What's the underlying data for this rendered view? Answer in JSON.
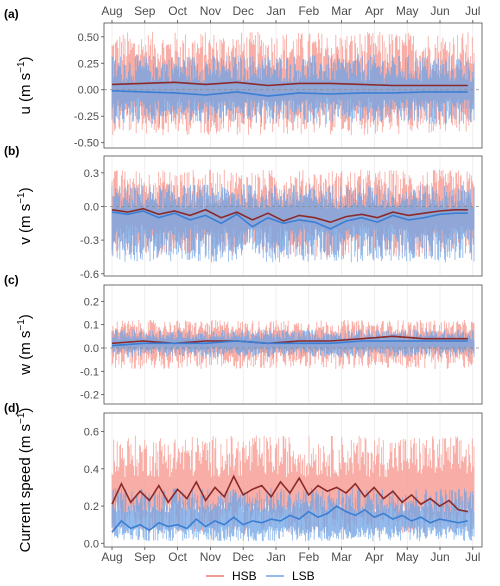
{
  "colors": {
    "hsb_raw": "#f7a096",
    "hsb_smooth": "#8b2a2a",
    "lsb_raw": "#6ea3e6",
    "lsb_smooth": "#3a7fd4",
    "panel_border": "#4d4d4d",
    "grid": "#e6e6e6"
  },
  "months": [
    "Aug",
    "Sep",
    "Oct",
    "Nov",
    "Dec",
    "Jan",
    "Feb",
    "Mar",
    "Apr",
    "May",
    "Jun",
    "Jul"
  ],
  "legend": [
    {
      "name": "HSB",
      "color": "#e87a6e"
    },
    {
      "name": "LSB",
      "color": "#6ea3e6"
    }
  ],
  "chart_data": [
    {
      "type": "line",
      "panel": "(a)",
      "ylabel_main": "u (m s",
      "ylabel_sup": "−1",
      "ylabel_close": ")",
      "yticks": [
        "0.50",
        "0.25",
        "0.00",
        "-0.25",
        "-0.50"
      ],
      "tick_values": [
        0.5,
        0.25,
        0.0,
        -0.25,
        -0.5
      ],
      "ylim": [
        -0.55,
        0.63
      ],
      "xlim": [
        0,
        11.6
      ],
      "x_axis": "months Aug–Jul",
      "zero_line": true,
      "series": [
        {
          "name": "HSB",
          "kind": "raw",
          "envelope_lo": -0.43,
          "envelope_hi": 0.55,
          "mean": 0.05
        },
        {
          "name": "LSB",
          "kind": "raw",
          "envelope_lo": -0.33,
          "envelope_hi": 0.33,
          "mean": -0.02
        },
        {
          "name": "HSB",
          "kind": "smoothed",
          "x": [
            0,
            1,
            2,
            3,
            4,
            5,
            6,
            7,
            8,
            9,
            10,
            11.4
          ],
          "values": [
            0.05,
            0.06,
            0.07,
            0.05,
            0.07,
            0.04,
            0.06,
            0.06,
            0.05,
            0.04,
            0.04,
            0.04
          ]
        },
        {
          "name": "LSB",
          "kind": "smoothed",
          "x": [
            0,
            1,
            2,
            3,
            4,
            5,
            6,
            7,
            8,
            9,
            10,
            11.4
          ],
          "values": [
            -0.01,
            -0.02,
            -0.03,
            -0.05,
            -0.02,
            -0.06,
            -0.03,
            -0.04,
            -0.03,
            -0.03,
            -0.02,
            -0.02
          ]
        }
      ]
    },
    {
      "type": "line",
      "panel": "(b)",
      "ylabel_main": "v (m s",
      "ylabel_sup": "−1",
      "ylabel_close": ")",
      "yticks": [
        "0.3",
        "0.0",
        "-0.3",
        "-0.6"
      ],
      "tick_values": [
        0.3,
        0.0,
        -0.3,
        -0.6
      ],
      "ylim": [
        -0.62,
        0.45
      ],
      "xlim": [
        0,
        11.6
      ],
      "zero_line": true,
      "series": [
        {
          "name": "HSB",
          "kind": "raw",
          "envelope_lo": -0.45,
          "envelope_hi": 0.33,
          "mean": -0.06
        },
        {
          "name": "LSB",
          "kind": "raw",
          "envelope_lo": -0.5,
          "envelope_hi": 0.2,
          "mean": -0.1
        },
        {
          "name": "HSB",
          "kind": "smoothed",
          "x": [
            0,
            0.5,
            1,
            1.5,
            2,
            2.5,
            3,
            3.5,
            4,
            4.5,
            5,
            5.5,
            6,
            6.5,
            7,
            7.5,
            8,
            8.5,
            9,
            9.5,
            10,
            10.5,
            11,
            11.4
          ],
          "values": [
            -0.03,
            -0.05,
            -0.02,
            -0.07,
            -0.04,
            -0.08,
            -0.03,
            -0.1,
            -0.05,
            -0.12,
            -0.06,
            -0.13,
            -0.08,
            -0.1,
            -0.14,
            -0.09,
            -0.07,
            -0.1,
            -0.05,
            -0.08,
            -0.06,
            -0.04,
            -0.03,
            -0.03
          ]
        },
        {
          "name": "LSB",
          "kind": "smoothed",
          "x": [
            0,
            0.5,
            1,
            1.5,
            2,
            2.5,
            3,
            3.5,
            4,
            4.5,
            5,
            5.5,
            6,
            6.5,
            7,
            7.5,
            8,
            8.5,
            9,
            9.5,
            10,
            10.5,
            11,
            11.4
          ],
          "values": [
            -0.05,
            -0.07,
            -0.04,
            -0.1,
            -0.06,
            -0.12,
            -0.08,
            -0.15,
            -0.07,
            -0.18,
            -0.1,
            -0.15,
            -0.12,
            -0.14,
            -0.2,
            -0.13,
            -0.1,
            -0.14,
            -0.08,
            -0.12,
            -0.1,
            -0.07,
            -0.06,
            -0.06
          ]
        }
      ]
    },
    {
      "type": "line",
      "panel": "(c)",
      "ylabel_main": "w (m s",
      "ylabel_sup": "−1",
      "ylabel_close": ")",
      "yticks": [
        "0.2",
        "0.1",
        "0.0",
        "-0.1",
        "-0.2"
      ],
      "tick_values": [
        0.2,
        0.1,
        0.0,
        -0.1,
        -0.2
      ],
      "ylim": [
        -0.24,
        0.27
      ],
      "xlim": [
        0,
        11.6
      ],
      "zero_line": true,
      "series": [
        {
          "name": "HSB",
          "kind": "raw",
          "envelope_lo": -0.09,
          "envelope_hi": 0.12,
          "mean": 0.03
        },
        {
          "name": "LSB",
          "kind": "raw",
          "envelope_lo": -0.04,
          "envelope_hi": 0.08,
          "mean": 0.02
        },
        {
          "name": "HSB",
          "kind": "smoothed",
          "x": [
            0,
            1,
            2,
            3,
            4,
            5,
            6,
            7,
            8,
            9,
            10,
            11.4
          ],
          "values": [
            0.02,
            0.03,
            0.02,
            0.03,
            0.03,
            0.02,
            0.03,
            0.03,
            0.04,
            0.05,
            0.04,
            0.04
          ]
        },
        {
          "name": "LSB",
          "kind": "smoothed",
          "x": [
            0,
            1,
            2,
            3,
            4,
            5,
            6,
            7,
            8,
            9,
            10,
            11.4
          ],
          "values": [
            0.01,
            0.02,
            0.02,
            0.02,
            0.03,
            0.02,
            0.02,
            0.02,
            0.03,
            0.03,
            0.03,
            0.03
          ]
        }
      ]
    },
    {
      "type": "line",
      "panel": "(d)",
      "ylabel_main": "Current speed (m s",
      "ylabel_sup": "−1",
      "ylabel_close": ")",
      "yticks": [
        "0.6",
        "0.4",
        "0.2",
        "0.0"
      ],
      "tick_values": [
        0.6,
        0.4,
        0.2,
        0.0
      ],
      "ylim": [
        -0.02,
        0.7
      ],
      "xlim": [
        0,
        11.6
      ],
      "zero_line": false,
      "series": [
        {
          "name": "HSB",
          "kind": "raw",
          "envelope_lo": 0.05,
          "envelope_hi": 0.58,
          "mean": 0.28
        },
        {
          "name": "LSB",
          "kind": "raw",
          "envelope_lo": 0.01,
          "envelope_hi": 0.3,
          "mean": 0.12
        },
        {
          "name": "HSB",
          "kind": "smoothed",
          "x": [
            0,
            0.3,
            0.6,
            0.9,
            1.2,
            1.5,
            1.8,
            2.1,
            2.4,
            2.7,
            3,
            3.3,
            3.6,
            3.9,
            4.2,
            4.5,
            4.8,
            5.1,
            5.4,
            5.7,
            6,
            6.3,
            6.6,
            6.9,
            7.2,
            7.5,
            7.8,
            8.1,
            8.4,
            8.7,
            9,
            9.3,
            9.6,
            9.9,
            10.2,
            10.5,
            10.8,
            11.1,
            11.4
          ],
          "values": [
            0.21,
            0.32,
            0.22,
            0.28,
            0.23,
            0.31,
            0.22,
            0.29,
            0.24,
            0.33,
            0.23,
            0.3,
            0.25,
            0.36,
            0.26,
            0.29,
            0.31,
            0.25,
            0.33,
            0.27,
            0.35,
            0.26,
            0.31,
            0.28,
            0.3,
            0.27,
            0.32,
            0.25,
            0.3,
            0.24,
            0.28,
            0.22,
            0.26,
            0.21,
            0.24,
            0.2,
            0.23,
            0.18,
            0.17
          ]
        },
        {
          "name": "LSB",
          "kind": "smoothed",
          "x": [
            0,
            0.3,
            0.6,
            0.9,
            1.2,
            1.5,
            1.8,
            2.1,
            2.4,
            2.7,
            3,
            3.3,
            3.6,
            3.9,
            4.2,
            4.5,
            4.8,
            5.1,
            5.4,
            5.7,
            6,
            6.3,
            6.6,
            6.9,
            7.2,
            7.5,
            7.8,
            8.1,
            8.4,
            8.7,
            9,
            9.3,
            9.6,
            9.9,
            10.2,
            10.5,
            10.8,
            11.1,
            11.4
          ],
          "values": [
            0.06,
            0.12,
            0.08,
            0.1,
            0.07,
            0.11,
            0.09,
            0.1,
            0.08,
            0.13,
            0.09,
            0.12,
            0.1,
            0.14,
            0.1,
            0.12,
            0.11,
            0.13,
            0.12,
            0.15,
            0.13,
            0.17,
            0.14,
            0.16,
            0.2,
            0.17,
            0.15,
            0.18,
            0.14,
            0.16,
            0.13,
            0.15,
            0.12,
            0.14,
            0.11,
            0.13,
            0.12,
            0.11,
            0.12
          ]
        }
      ]
    }
  ]
}
